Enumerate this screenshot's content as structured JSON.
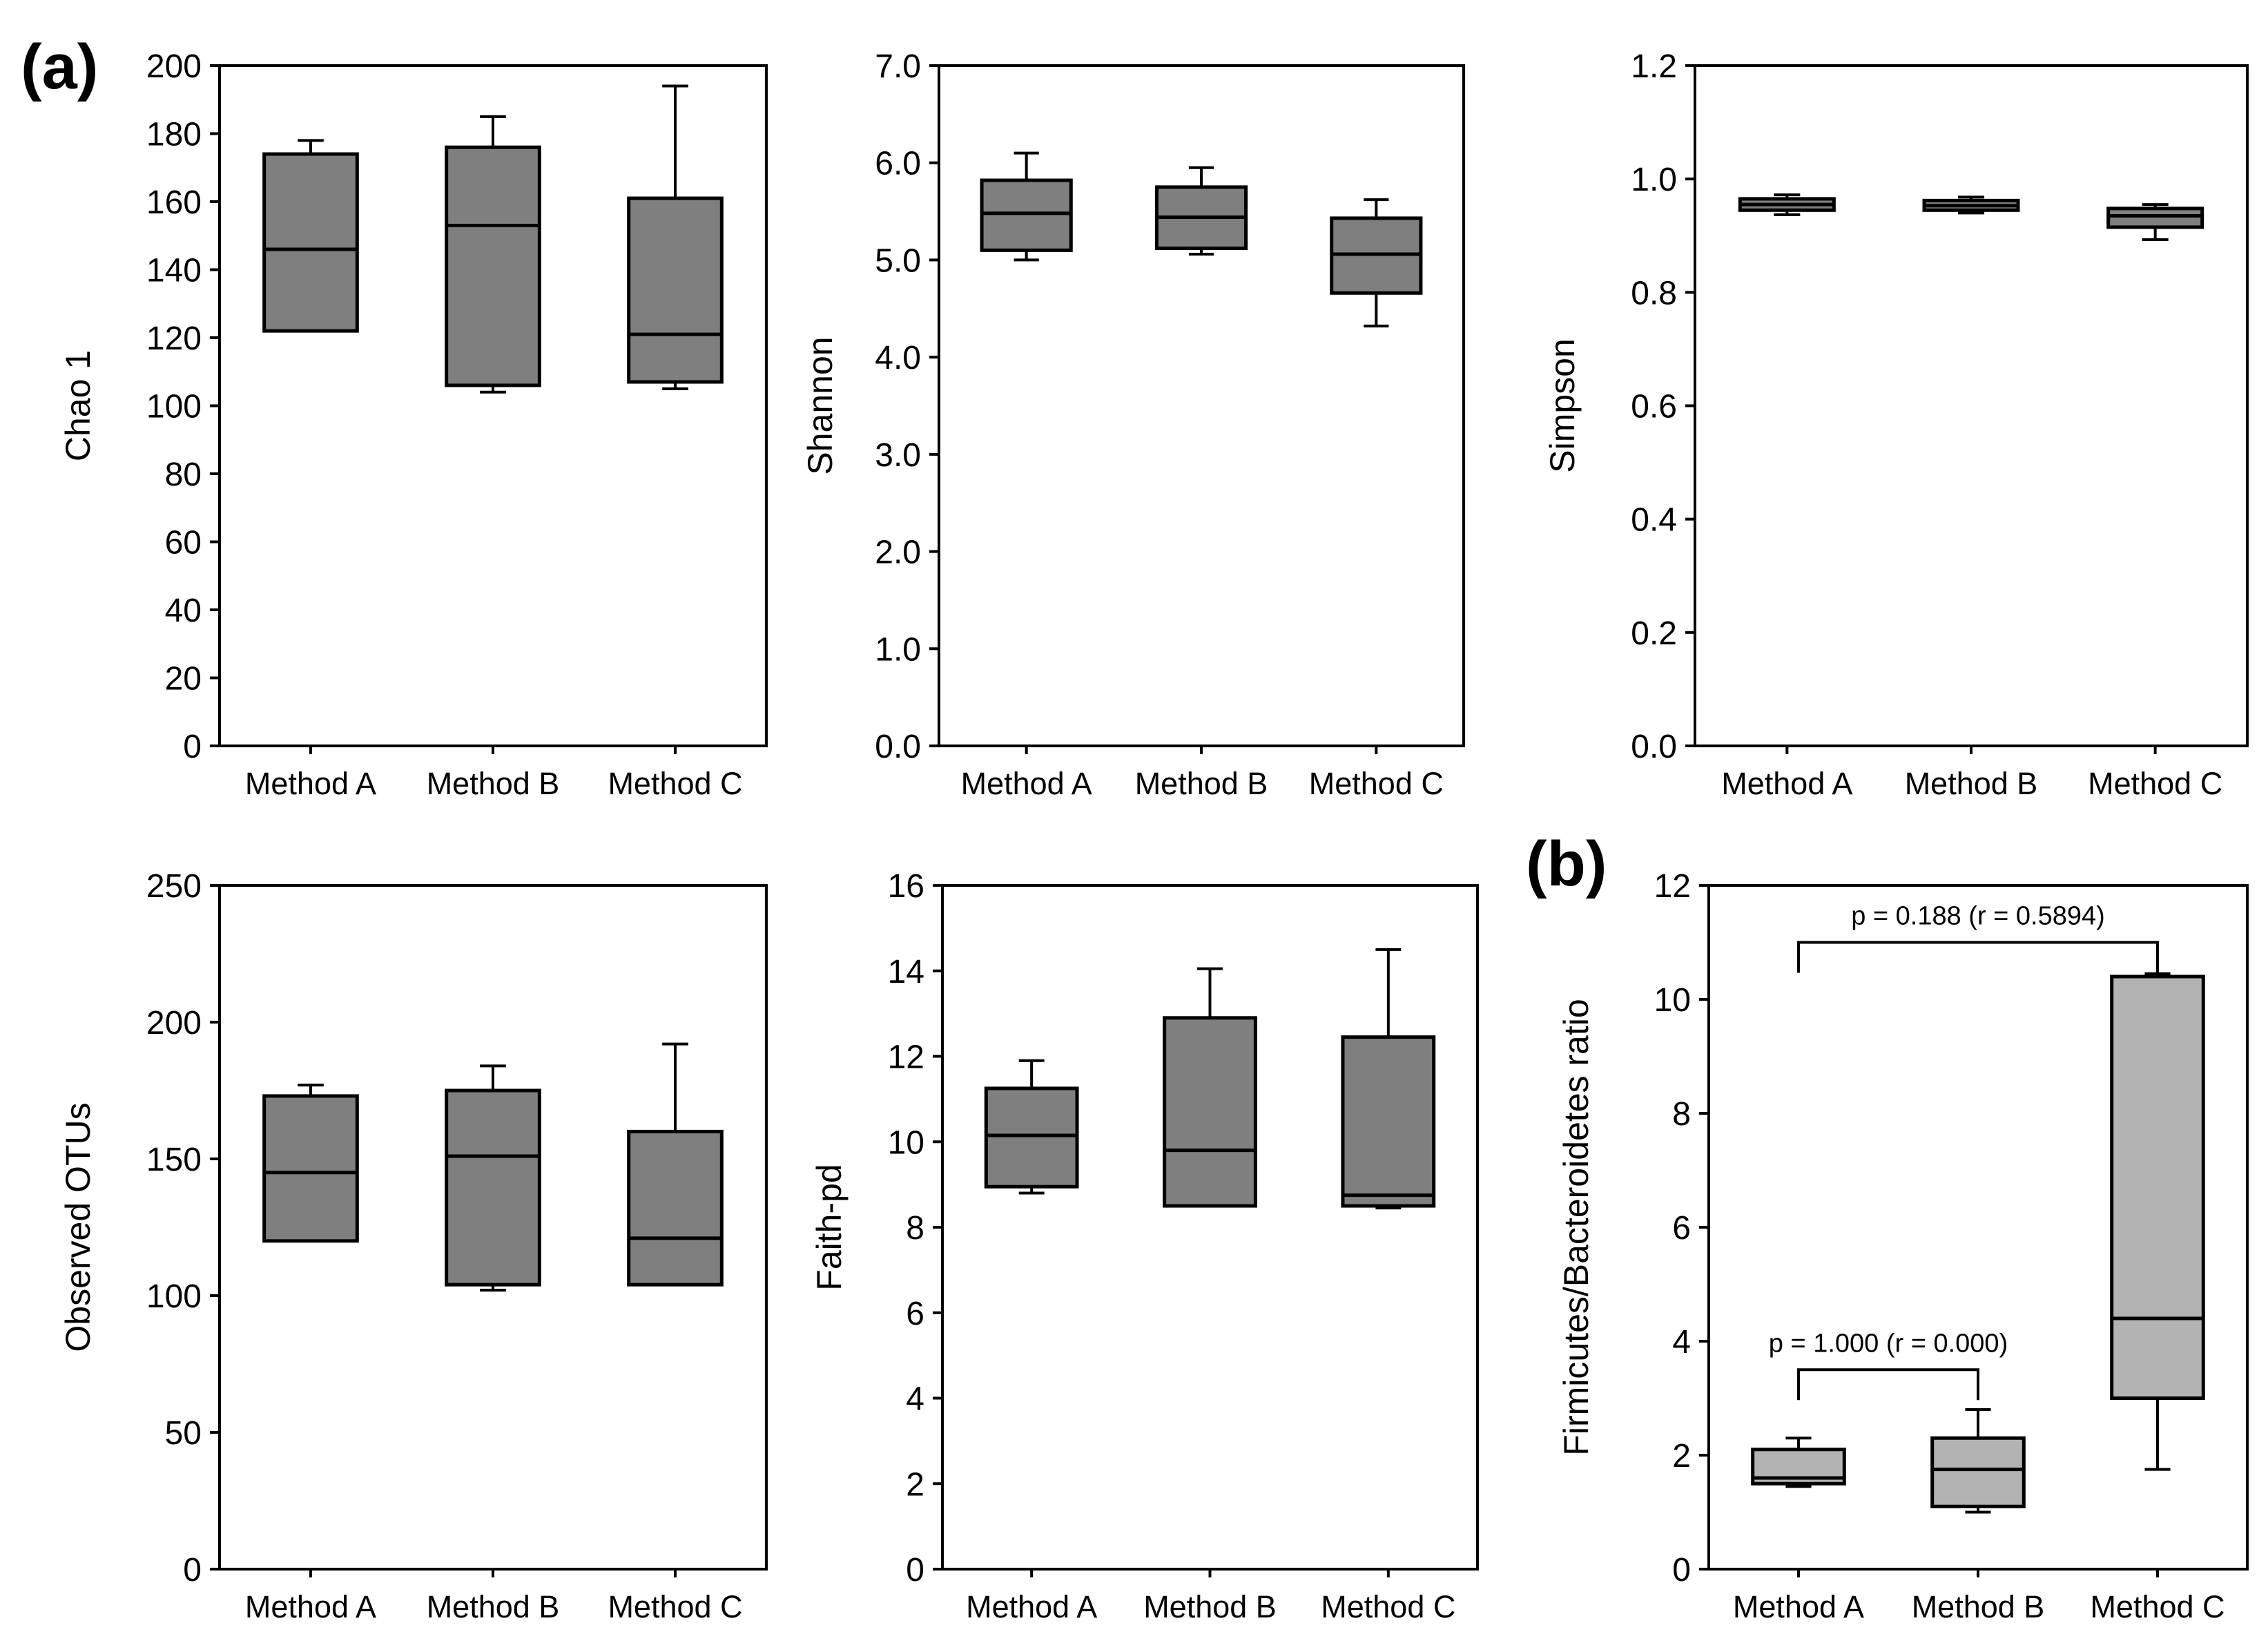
{
  "panel_labels": {
    "a": "(a)",
    "b": "(b)"
  },
  "colors": {
    "box_dark": "#7f7f7f",
    "box_light": "#b3b3b3",
    "stroke": "#000000",
    "background": "#ffffff"
  },
  "chart_data": [
    {
      "id": "chao1",
      "type": "box",
      "ylabel": "Chao 1",
      "categories": [
        "Method A",
        "Method B",
        "Method C"
      ],
      "ylim": [
        0,
        200
      ],
      "yticks": [
        "0",
        "20",
        "40",
        "60",
        "80",
        "100",
        "120",
        "140",
        "160",
        "180",
        "200"
      ],
      "boxes": [
        {
          "min": 122,
          "q1": 122,
          "median": 146,
          "q3": 174,
          "max": 178
        },
        {
          "min": 104,
          "q1": 106,
          "median": 153,
          "q3": 176,
          "max": 185
        },
        {
          "min": 105,
          "q1": 107,
          "median": 121,
          "q3": 161,
          "max": 194
        }
      ],
      "grid": false
    },
    {
      "id": "shannon",
      "type": "box",
      "ylabel": "Shannon",
      "categories": [
        "Method A",
        "Method B",
        "Method C"
      ],
      "ylim": [
        0,
        7
      ],
      "yticks": [
        "0.0",
        "1.0",
        "2.0",
        "3.0",
        "4.0",
        "5.0",
        "6.0",
        "7.0"
      ],
      "boxes": [
        {
          "min": 5.0,
          "q1": 5.1,
          "median": 5.48,
          "q3": 5.82,
          "max": 6.1
        },
        {
          "min": 5.06,
          "q1": 5.12,
          "median": 5.44,
          "q3": 5.75,
          "max": 5.95
        },
        {
          "min": 4.32,
          "q1": 4.66,
          "median": 5.06,
          "q3": 5.43,
          "max": 5.62
        }
      ],
      "grid": false
    },
    {
      "id": "simpson",
      "type": "box",
      "ylabel": "Simpson",
      "categories": [
        "Method A",
        "Method B",
        "Method C"
      ],
      "ylim": [
        0,
        1.2
      ],
      "yticks": [
        "0.0",
        "0.2",
        "0.4",
        "0.6",
        "0.8",
        "1.0",
        "1.2"
      ],
      "boxes": [
        {
          "min": 0.937,
          "q1": 0.945,
          "median": 0.955,
          "q3": 0.965,
          "max": 0.972
        },
        {
          "min": 0.94,
          "q1": 0.945,
          "median": 0.953,
          "q3": 0.962,
          "max": 0.968
        },
        {
          "min": 0.893,
          "q1": 0.915,
          "median": 0.935,
          "q3": 0.948,
          "max": 0.955
        }
      ],
      "grid": false
    },
    {
      "id": "observed_otus",
      "type": "box",
      "ylabel": "Observed OTUs",
      "categories": [
        "Method A",
        "Method B",
        "Method C"
      ],
      "ylim": [
        0,
        250
      ],
      "yticks": [
        "0",
        "50",
        "100",
        "150",
        "200",
        "250"
      ],
      "boxes": [
        {
          "min": 120,
          "q1": 120,
          "median": 145,
          "q3": 173,
          "max": 177
        },
        {
          "min": 102,
          "q1": 104,
          "median": 151,
          "q3": 175,
          "max": 184
        },
        {
          "min": 104,
          "q1": 104,
          "median": 121,
          "q3": 160,
          "max": 192
        }
      ],
      "grid": false
    },
    {
      "id": "faith_pd",
      "type": "box",
      "ylabel": "Faith-pd",
      "categories": [
        "Method A",
        "Method B",
        "Method C"
      ],
      "ylim": [
        0,
        16
      ],
      "yticks": [
        "0",
        "2",
        "4",
        "6",
        "8",
        "10",
        "12",
        "14",
        "16"
      ],
      "boxes": [
        {
          "min": 8.8,
          "q1": 8.95,
          "median": 10.15,
          "q3": 11.25,
          "max": 11.9
        },
        {
          "min": 8.5,
          "q1": 8.5,
          "median": 9.8,
          "q3": 12.9,
          "max": 14.05
        },
        {
          "min": 8.45,
          "q1": 8.5,
          "median": 8.75,
          "q3": 12.45,
          "max": 14.5
        }
      ],
      "grid": false
    },
    {
      "id": "fb_ratio",
      "type": "box",
      "ylabel": "Firmicutes/Bacteroidetes ratio",
      "categories": [
        "Method A",
        "Method B",
        "Method C"
      ],
      "ylim": [
        0,
        12
      ],
      "yticks": [
        "0",
        "2",
        "4",
        "6",
        "8",
        "10",
        "12"
      ],
      "boxes": [
        {
          "min": 1.45,
          "q1": 1.5,
          "median": 1.6,
          "q3": 2.1,
          "max": 2.3
        },
        {
          "min": 1.0,
          "q1": 1.1,
          "median": 1.75,
          "q3": 2.3,
          "max": 2.8
        },
        {
          "min": 1.75,
          "q1": 3.0,
          "median": 4.4,
          "q3": 10.4,
          "max": 10.45
        }
      ],
      "annotations": [
        {
          "from": 0,
          "to": 2,
          "y": 11.0,
          "text": "p = 0.188 (r = 0.5894)"
        },
        {
          "from": 0,
          "to": 1,
          "y": 3.5,
          "text": "p = 1.000 (r = 0.000)"
        }
      ],
      "grid": false
    }
  ]
}
